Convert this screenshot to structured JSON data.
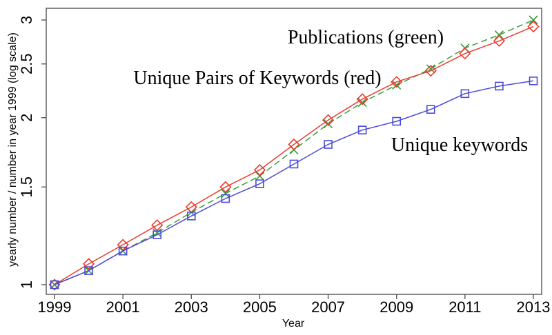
{
  "chart_data": {
    "type": "line",
    "title": "",
    "xlabel": "Year",
    "ylabel": "yearly number / number in year 1999 (log scale)",
    "y_scale": "log",
    "grid": false,
    "legend_position": "in-plot text annotations",
    "xlim": [
      1999,
      2013
    ],
    "ylim": [
      1,
      3.05
    ],
    "x_ticks": [
      1999,
      2001,
      2003,
      2005,
      2007,
      2009,
      2011,
      2013
    ],
    "y_ticks": [
      1,
      1.5,
      2,
      2.5,
      3
    ],
    "y_tick_labels": [
      "1",
      "1.5",
      "2",
      "2.5",
      "3"
    ],
    "x": [
      1999,
      2000,
      2001,
      2002,
      2003,
      2004,
      2005,
      2006,
      2007,
      2008,
      2009,
      2010,
      2011,
      2012,
      2013
    ],
    "series": [
      {
        "name": "Publications",
        "color": "#3a9b3a",
        "line": "dashed",
        "marker": "x",
        "values": [
          1.0,
          1.06,
          1.15,
          1.24,
          1.35,
          1.46,
          1.57,
          1.75,
          1.95,
          2.13,
          2.29,
          2.45,
          2.67,
          2.82,
          3.0
        ]
      },
      {
        "name": "Unique Pairs of Keywords",
        "color": "#ed3b2e",
        "line": "solid",
        "marker": "diamond",
        "values": [
          1.0,
          1.09,
          1.18,
          1.28,
          1.38,
          1.5,
          1.61,
          1.79,
          1.98,
          2.16,
          2.32,
          2.43,
          2.61,
          2.75,
          2.92
        ]
      },
      {
        "name": "Unique keywords",
        "color": "#4a4ad9",
        "line": "solid",
        "marker": "square",
        "values": [
          1.0,
          1.06,
          1.15,
          1.23,
          1.33,
          1.43,
          1.52,
          1.65,
          1.79,
          1.9,
          1.97,
          2.07,
          2.21,
          2.28,
          2.33
        ]
      }
    ],
    "annotations": [
      {
        "text": "Publications (green)",
        "anchor_x": 2008.1,
        "anchor_y": 2.72
      },
      {
        "text": "Unique Pairs of Keywords (red)",
        "anchor_x": 2004.9,
        "anchor_y": 2.29
      },
      {
        "text": "Unique keywords",
        "anchor_x": 2010.8,
        "anchor_y": 1.73
      }
    ],
    "axis_color": "#555555",
    "text_color": "#000000",
    "background_color": "#ffffff"
  }
}
